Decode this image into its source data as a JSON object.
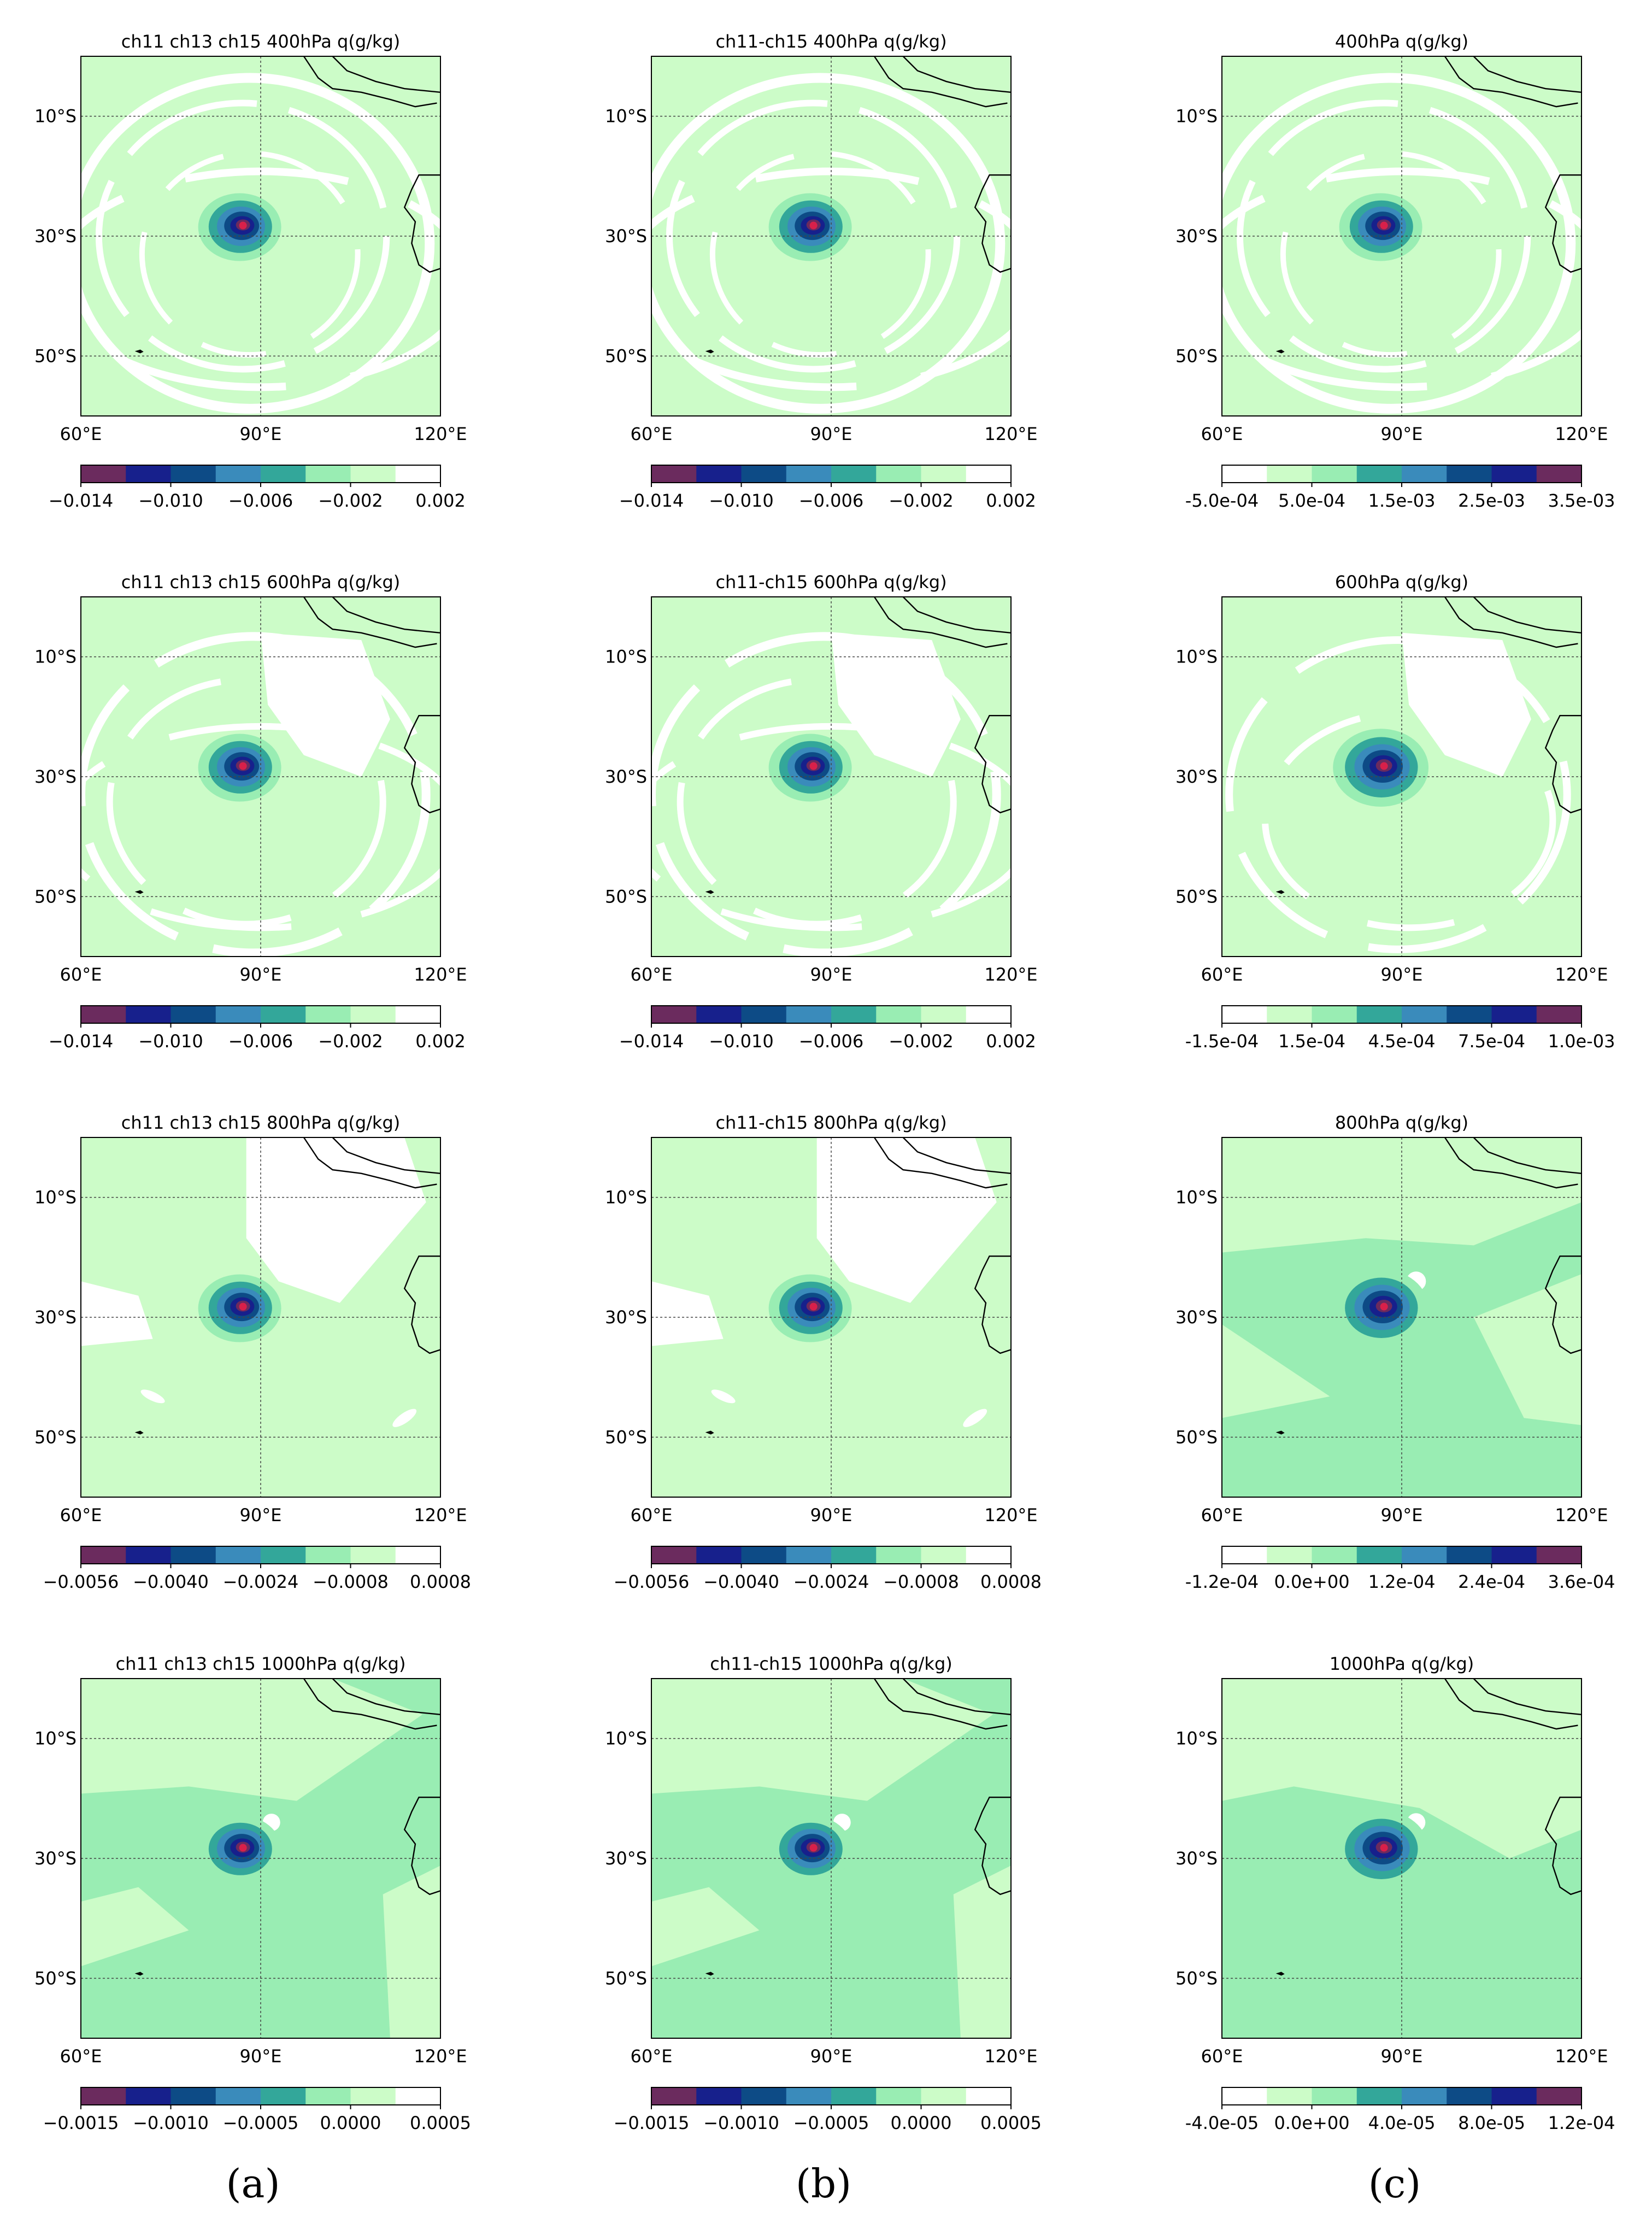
{
  "figure": {
    "column_labels": [
      "(a)",
      "(b)",
      "(c)"
    ],
    "axes": {
      "lon_ticks": [
        60,
        90,
        120
      ],
      "lon_tick_labels": [
        "60°E",
        "90°E",
        "120°E"
      ],
      "lat_ticks": [
        -10,
        -30,
        -50
      ],
      "lat_tick_labels": [
        "10°S",
        "30°S",
        "50°S"
      ],
      "lon_range": [
        60,
        120
      ],
      "lat_range": [
        0,
        -60
      ]
    },
    "colors": {
      "purple": "#6b2b5e",
      "navy": "#17208c",
      "dark_blue": "#0d4b86",
      "blue": "#3a8bbb",
      "teal": "#33a79a",
      "mint": "#99edb3",
      "light_mint": "#ccfcc8",
      "white": "#ffffff",
      "red_core": "#d8204a",
      "grid": "#444444"
    }
  },
  "chart_data": [
    {
      "type": "heatmap",
      "id": "r1a",
      "title": "ch11 ch13 ch15 400hPa q(g/kg)",
      "variant": "diff",
      "level": 400,
      "colorbar": {
        "ticks": [
          "−0.014",
          "−0.010",
          "−0.006",
          "−0.002",
          "0.002"
        ],
        "range": [
          -0.014,
          0.002
        ]
      },
      "center": {
        "lon": 86.5,
        "lat": -28.5
      }
    },
    {
      "type": "heatmap",
      "id": "r1b",
      "title": "ch11-ch15 400hPa q(g/kg)",
      "variant": "diff",
      "level": 400,
      "colorbar": {
        "ticks": [
          "−0.014",
          "−0.010",
          "−0.006",
          "−0.002",
          "0.002"
        ],
        "range": [
          -0.014,
          0.002
        ]
      },
      "center": {
        "lon": 86.5,
        "lat": -28.5
      }
    },
    {
      "type": "heatmap",
      "id": "r1c",
      "title": "400hPa q(g/kg)",
      "variant": "inc",
      "level": 400,
      "colorbar": {
        "ticks": [
          "-5.0e-04",
          "5.0e-04",
          "1.5e-03",
          "2.5e-03",
          "3.5e-03"
        ],
        "range": [
          -0.0005,
          0.0035
        ]
      },
      "center": {
        "lon": 86.5,
        "lat": -28.5
      }
    },
    {
      "type": "heatmap",
      "id": "r2a",
      "title": "ch11 ch13 ch15 600hPa q(g/kg)",
      "variant": "diff",
      "level": 600,
      "colorbar": {
        "ticks": [
          "−0.014",
          "−0.010",
          "−0.006",
          "−0.002",
          "0.002"
        ],
        "range": [
          -0.014,
          0.002
        ]
      },
      "center": {
        "lon": 86.5,
        "lat": -28.5
      }
    },
    {
      "type": "heatmap",
      "id": "r2b",
      "title": "ch11-ch15 600hPa q(g/kg)",
      "variant": "diff",
      "level": 600,
      "colorbar": {
        "ticks": [
          "−0.014",
          "−0.010",
          "−0.006",
          "−0.002",
          "0.002"
        ],
        "range": [
          -0.014,
          0.002
        ]
      },
      "center": {
        "lon": 86.5,
        "lat": -28.5
      }
    },
    {
      "type": "heatmap",
      "id": "r2c",
      "title": "600hPa q(g/kg)",
      "variant": "inc",
      "level": 600,
      "colorbar": {
        "ticks": [
          "-1.5e-04",
          "1.5e-04",
          "4.5e-04",
          "7.5e-04",
          "1.0e-03"
        ],
        "range": [
          -0.00015,
          0.001
        ]
      },
      "center": {
        "lon": 86.5,
        "lat": -28.5
      }
    },
    {
      "type": "heatmap",
      "id": "r3a",
      "title": "ch11 ch13 ch15 800hPa q(g/kg)",
      "variant": "diff",
      "level": 800,
      "colorbar": {
        "ticks": [
          "−0.0056",
          "−0.0040",
          "−0.0024",
          "−0.0008",
          "0.0008"
        ],
        "range": [
          -0.0056,
          0.0008
        ]
      },
      "center": {
        "lon": 86.5,
        "lat": -28.5
      }
    },
    {
      "type": "heatmap",
      "id": "r3b",
      "title": "ch11-ch15 800hPa q(g/kg)",
      "variant": "diff",
      "level": 800,
      "colorbar": {
        "ticks": [
          "−0.0056",
          "−0.0040",
          "−0.0024",
          "−0.0008",
          "0.0008"
        ],
        "range": [
          -0.0056,
          0.0008
        ]
      },
      "center": {
        "lon": 86.5,
        "lat": -28.5
      }
    },
    {
      "type": "heatmap",
      "id": "r3c",
      "title": "800hPa q(g/kg)",
      "variant": "inc",
      "level": 800,
      "colorbar": {
        "ticks": [
          "-1.2e-04",
          "0.0e+00",
          "1.2e-04",
          "2.4e-04",
          "3.6e-04"
        ],
        "range": [
          -0.00012,
          0.00036
        ]
      },
      "center": {
        "lon": 86.5,
        "lat": -28.5
      }
    },
    {
      "type": "heatmap",
      "id": "r4a",
      "title": "ch11 ch13 ch15 1000hPa q(g/kg)",
      "variant": "diff",
      "level": 1000,
      "colorbar": {
        "ticks": [
          "−0.0015",
          "−0.0010",
          "−0.0005",
          "0.0000",
          "0.0005"
        ],
        "range": [
          -0.0015,
          0.0005
        ]
      },
      "center": {
        "lon": 86.5,
        "lat": -28.5
      }
    },
    {
      "type": "heatmap",
      "id": "r4b",
      "title": "ch11-ch15 1000hPa q(g/kg)",
      "variant": "diff",
      "level": 1000,
      "colorbar": {
        "ticks": [
          "−0.0015",
          "−0.0010",
          "−0.0005",
          "0.0000",
          "0.0005"
        ],
        "range": [
          -0.0015,
          0.0005
        ]
      },
      "center": {
        "lon": 86.5,
        "lat": -28.5
      }
    },
    {
      "type": "heatmap",
      "id": "r4c",
      "title": "1000hPa q(g/kg)",
      "variant": "inc",
      "level": 1000,
      "colorbar": {
        "ticks": [
          "-4.0e-05",
          "0.0e+00",
          "4.0e-05",
          "8.0e-05",
          "1.2e-04"
        ],
        "range": [
          -4e-05,
          0.00012
        ]
      },
      "center": {
        "lon": 86.5,
        "lat": -28.5
      }
    }
  ]
}
